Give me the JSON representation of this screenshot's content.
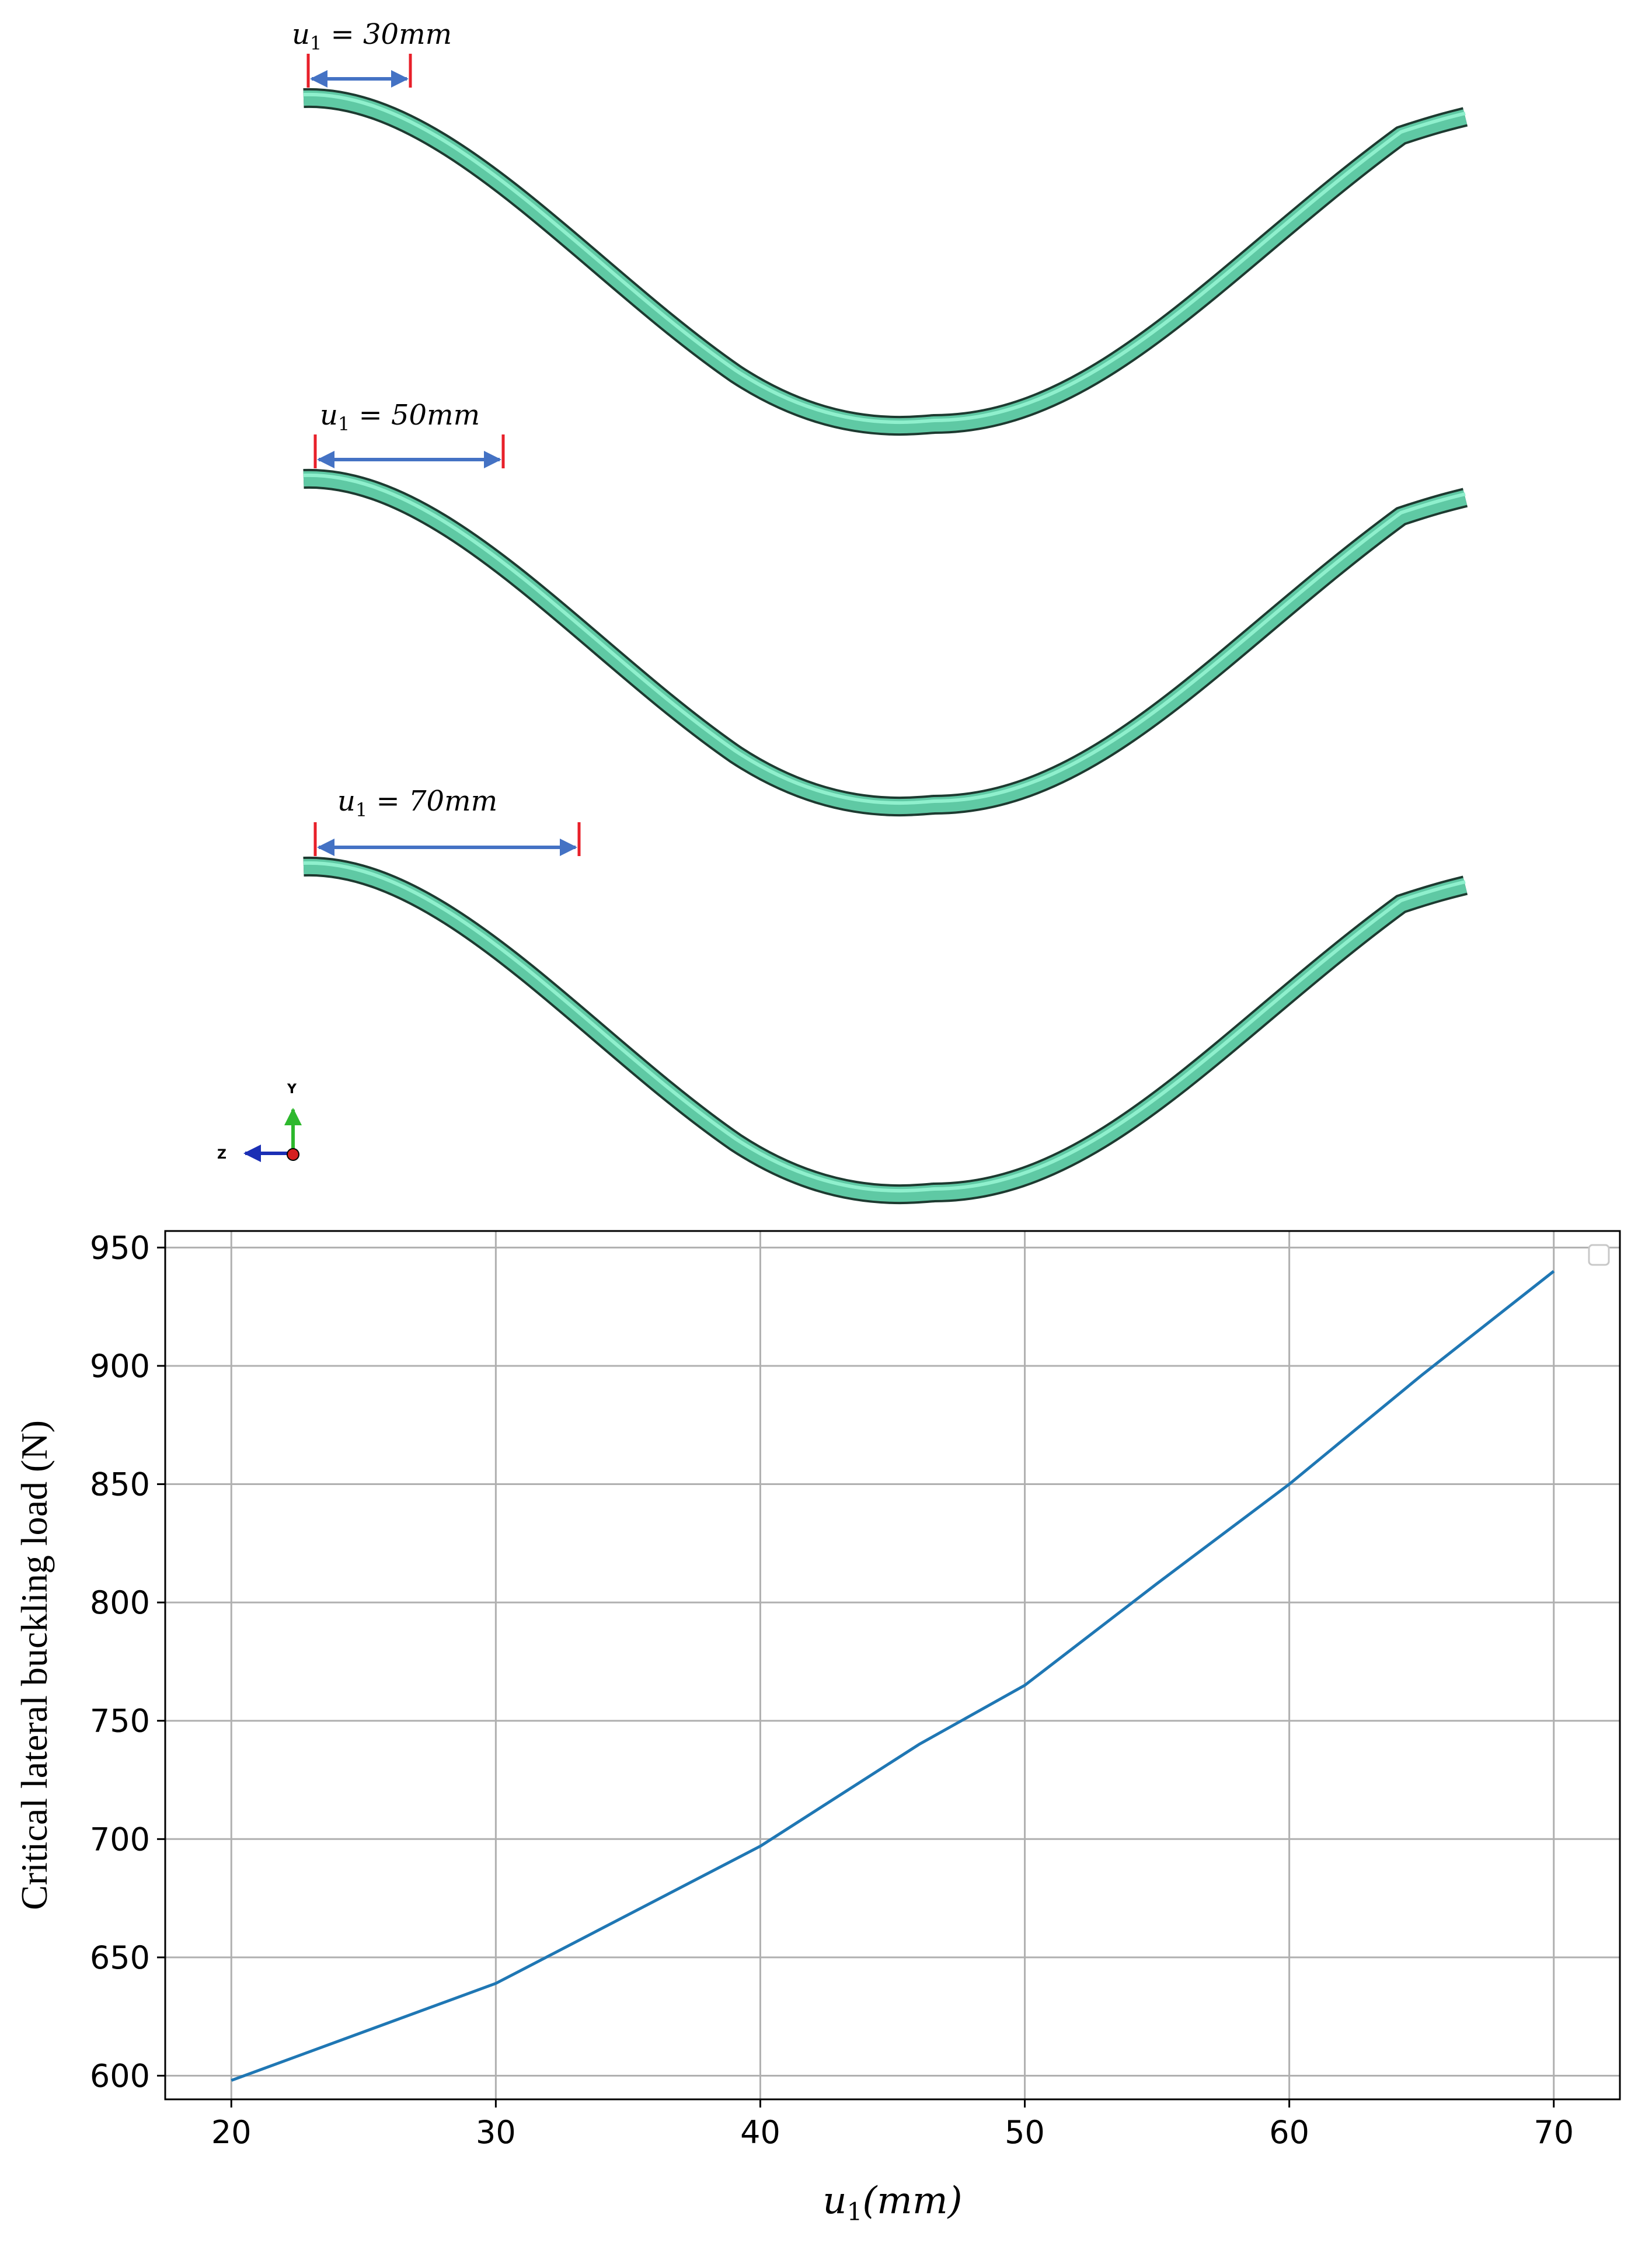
{
  "panels": [
    {
      "label_var": "u",
      "label_sub": "1",
      "label_rest": " = 30mm",
      "u1": 30
    },
    {
      "label_var": "u",
      "label_sub": "1",
      "label_rest": " = 50mm",
      "u1": 50
    },
    {
      "label_var": "u",
      "label_sub": "1",
      "label_rest": " = 70mm",
      "u1": 70
    }
  ],
  "triad": {
    "y_label": "Y",
    "z_label": "Z"
  },
  "colors": {
    "beam_fill": "#5fc9a4",
    "beam_highlight": "#8ff0cd",
    "beam_edge": "#1d3a30",
    "dimension_arrow": "#4472c4",
    "dimension_tick": "#e8202a",
    "series": "#1f77b4",
    "grid": "#b0b0b0",
    "axis_y": "#2db82d",
    "axis_z": "#1b2fb5",
    "axis_x": "#d61f1f"
  },
  "chart_data": {
    "type": "line",
    "title": "",
    "xlabel_var": "u",
    "xlabel_sub": "1",
    "xlabel_rest": "(mm)",
    "ylabel": "Critical lateral buckling load (N)",
    "x": [
      20,
      30,
      40,
      46,
      50,
      55,
      60,
      65,
      70
    ],
    "series": [
      {
        "values": [
          598,
          639,
          697,
          740,
          765,
          808,
          850,
          896,
          940
        ]
      }
    ],
    "xlim": [
      17.5,
      72.5
    ],
    "ylim": [
      590,
      957
    ],
    "xticks": [
      20,
      30,
      40,
      50,
      60,
      70
    ],
    "yticks": [
      600,
      650,
      700,
      750,
      800,
      850,
      900,
      950
    ],
    "grid": true,
    "legend": "top-right, empty"
  }
}
